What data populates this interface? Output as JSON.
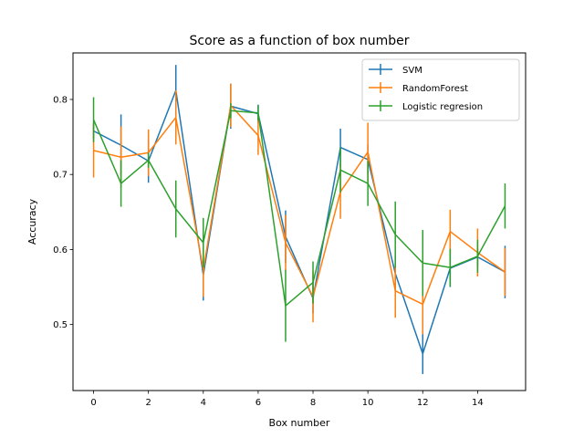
{
  "chart_data": {
    "type": "line",
    "title": "Score as a function of box number",
    "xlabel": "Box number",
    "ylabel": "Accuracy",
    "xlim": [
      -0.75,
      15.75
    ],
    "ylim": [
      0.412,
      0.862
    ],
    "xticks": [
      0,
      2,
      4,
      6,
      8,
      10,
      12,
      14
    ],
    "yticks": [
      0.5,
      0.6,
      0.7,
      0.8
    ],
    "grid": false,
    "legend_position": "top-right",
    "x": [
      0,
      1,
      2,
      3,
      4,
      5,
      6,
      7,
      8,
      9,
      10,
      11,
      12,
      13,
      14,
      15
    ],
    "series": [
      {
        "name": "SVM",
        "color": "#1f77b4",
        "values": [
          0.758,
          0.739,
          0.718,
          0.812,
          0.566,
          0.791,
          0.781,
          0.617,
          0.535,
          0.736,
          0.72,
          0.568,
          0.461,
          0.575,
          0.59,
          0.57
        ],
        "errors": [
          0.01,
          0.041,
          0.029,
          0.034,
          0.034,
          0.03,
          0.012,
          0.035,
          0.02,
          0.025,
          0.02,
          0.025,
          0.027,
          0.025,
          0.012,
          0.035
        ]
      },
      {
        "name": "RandomForest",
        "color": "#ff7f0e",
        "values": [
          0.732,
          0.723,
          0.729,
          0.776,
          0.573,
          0.792,
          0.752,
          0.609,
          0.537,
          0.677,
          0.73,
          0.545,
          0.527,
          0.624,
          0.596,
          0.57
        ],
        "errors": [
          0.036,
          0.041,
          0.031,
          0.036,
          0.036,
          0.029,
          0.026,
          0.037,
          0.034,
          0.036,
          0.039,
          0.036,
          0.04,
          0.029,
          0.032,
          0.032
        ]
      },
      {
        "name": "Logistic regresion",
        "color": "#2ca02c",
        "values": [
          0.773,
          0.688,
          0.719,
          0.654,
          0.609,
          0.785,
          0.782,
          0.525,
          0.556,
          0.706,
          0.688,
          0.62,
          0.582,
          0.576,
          0.591,
          0.658
        ],
        "errors": [
          0.03,
          0.031,
          0.01,
          0.038,
          0.033,
          0.01,
          0.01,
          0.048,
          0.028,
          0.03,
          0.03,
          0.044,
          0.044,
          0.025,
          0.022,
          0.03
        ]
      }
    ]
  }
}
